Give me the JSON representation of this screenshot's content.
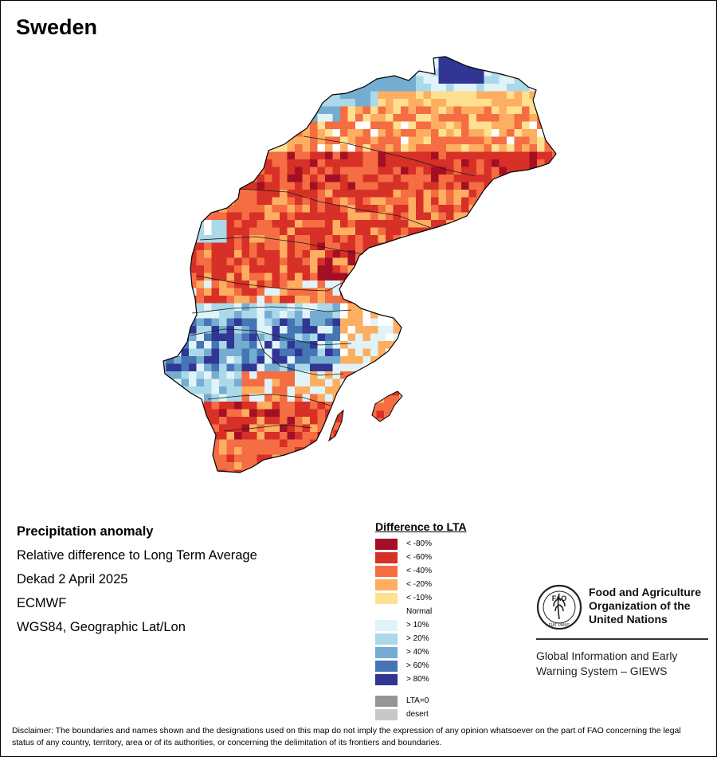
{
  "map": {
    "title": "Sweden",
    "region": "Sweden",
    "projection_label": "WGS84, Geographic Lat/Lon"
  },
  "info": {
    "heading": "Precipitation anomaly",
    "subtitle": "Relative difference to Long Term Average",
    "period": "Dekad 2 April 2025",
    "source": "ECMWF",
    "projection": "WGS84, Geographic Lat/Lon"
  },
  "legend": {
    "title": "Difference to LTA",
    "classes": [
      {
        "label": "< -80%",
        "color": "#a50f26"
      },
      {
        "label": "< -60%",
        "color": "#d73027"
      },
      {
        "label": "< -40%",
        "color": "#f46d43"
      },
      {
        "label": "< -20%",
        "color": "#fdae61"
      },
      {
        "label": "< -10%",
        "color": "#fee090"
      },
      {
        "label": "Normal",
        "color": "#ffffff"
      },
      {
        "label": "> 10%",
        "color": "#e0f3f8"
      },
      {
        "label": "> 20%",
        "color": "#abd9e9"
      },
      {
        "label": "> 40%",
        "color": "#74add1"
      },
      {
        "label": "> 60%",
        "color": "#4575b4"
      },
      {
        "label": "> 80%",
        "color": "#313695"
      }
    ],
    "extra": [
      {
        "label": "LTA=0",
        "color": "#969696"
      },
      {
        "label": "desert",
        "color": "#c8c8c8"
      }
    ]
  },
  "logo": {
    "org_name": "Food and Agriculture\nOrganization of the\nUnited Nations",
    "emblem_text": "FAO",
    "motto": "FIAT PANIS",
    "system_name": "Global Information and Early\nWarning System – GIEWS"
  },
  "disclaimer": "Disclaimer: The boundaries and names shown and the designations used on this map do not imply the expression of any opinion whatsoever on the part of FAO concerning the legal status of any country, territory, area or of its authorities, or concerning the delimitation of its frontiers and boundaries.",
  "colors": {
    "border": "#000000",
    "text": "#000000"
  }
}
